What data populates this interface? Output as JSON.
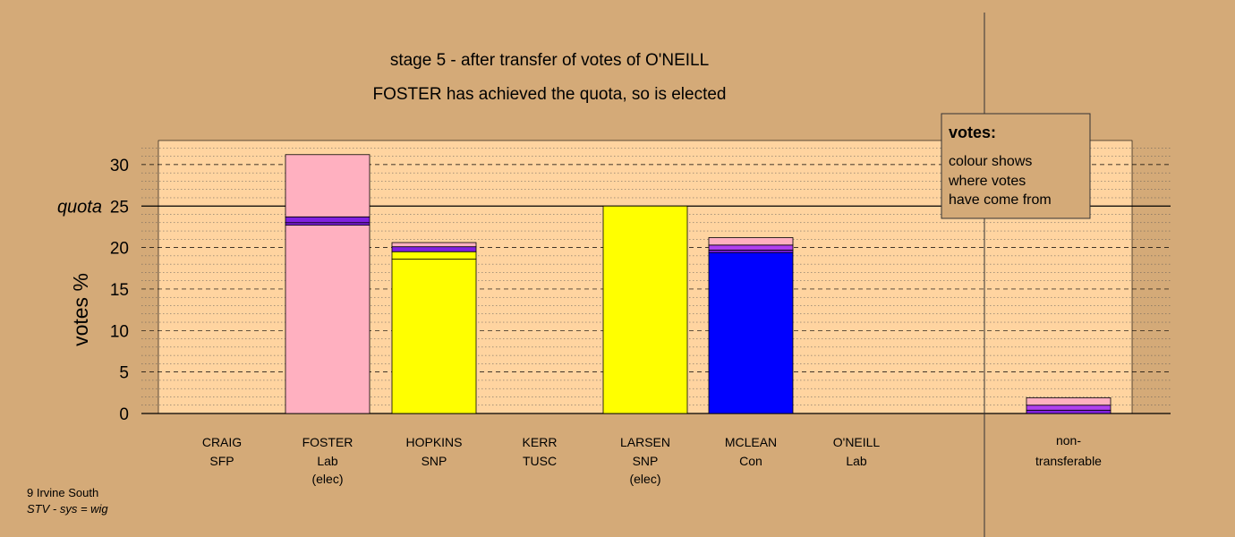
{
  "chart_data": {
    "type": "bar",
    "title": "stage 5 - after transfer of votes of O'NEILL",
    "subtitle": "FOSTER has achieved the quota, so is elected",
    "ylabel": "votes %",
    "quota_label": "quota",
    "quota": 25,
    "ylim": [
      0,
      33
    ],
    "yticks": [
      "0",
      "5",
      "10",
      "15",
      "20",
      "25",
      "30"
    ],
    "legend": {
      "title": "votes:",
      "lines": [
        "colour shows",
        "where votes",
        "have come from"
      ]
    },
    "colors": {
      "pink": "#ffb0c0",
      "purple": "#8020e0",
      "magenta": "#b040f0",
      "yellow": "#ffff00",
      "blue": "#0000ff",
      "plot_bg": "#ffd4a0",
      "page_bg": "#d4aa78"
    },
    "categories": [
      {
        "name": "CRAIG",
        "party": "SFP",
        "note": "",
        "segments": []
      },
      {
        "name": "FOSTER",
        "party": "Lab",
        "note": "(elec)",
        "segments": [
          {
            "value": 22.7,
            "color": "#ffb0c0"
          },
          {
            "value": 0.3,
            "color": "#8020e0"
          },
          {
            "value": 0.7,
            "color": "#8020e0"
          },
          {
            "value": 7.5,
            "color": "#ffb0c0"
          }
        ]
      },
      {
        "name": "HOPKINS",
        "party": "SNP",
        "note": "",
        "segments": [
          {
            "value": 18.6,
            "color": "#ffff00"
          },
          {
            "value": 0.9,
            "color": "#ffff00"
          },
          {
            "value": 0.6,
            "color": "#8020e0"
          },
          {
            "value": 0.5,
            "color": "#ffb0c0"
          }
        ]
      },
      {
        "name": "KERR",
        "party": "TUSC",
        "note": "",
        "segments": []
      },
      {
        "name": "LARSEN",
        "party": "SNP",
        "note": "(elec)",
        "segments": [
          {
            "value": 25.0,
            "color": "#ffff00"
          }
        ]
      },
      {
        "name": "MCLEAN",
        "party": "Con",
        "note": "",
        "segments": [
          {
            "value": 19.4,
            "color": "#0000ff"
          },
          {
            "value": 0.3,
            "color": "#8020e0"
          },
          {
            "value": 0.6,
            "color": "#b040f0"
          },
          {
            "value": 0.9,
            "color": "#ffb0c0"
          }
        ]
      },
      {
        "name": "O'NEILL",
        "party": "Lab",
        "note": "",
        "segments": []
      }
    ],
    "nontransferable": {
      "label_line1": "non-",
      "label_line2": "transferable",
      "segments": [
        {
          "value": 0.4,
          "color": "#8020e0"
        },
        {
          "value": 0.6,
          "color": "#b040f0"
        },
        {
          "value": 0.9,
          "color": "#ffb0c0"
        }
      ]
    },
    "grid": true
  },
  "footer": {
    "ward": "9 Irvine South",
    "system": "STV - sys = wig"
  }
}
